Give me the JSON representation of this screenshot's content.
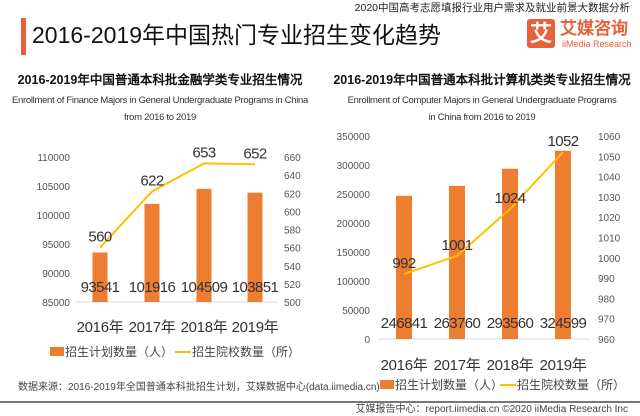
{
  "header": {
    "top_note": "2020中国高考志愿填报行业用户需求及就业前景大数据分析",
    "title": "2016-2019年中国热门专业招生变化趋势",
    "logo_mark": "艾",
    "logo_cn": "艾媒咨询",
    "logo_en": "iiMedia Research"
  },
  "colors": {
    "bar": "#ed7d31",
    "line": "#ffc000",
    "accent": "#e8603c"
  },
  "chart_data": [
    {
      "type": "bar+line",
      "title": "2016-2019年中国普通本科批金融学类专业招生情况",
      "subtitle_line1": "Enrollment of Finance Majors in General Undergraduate Programs in China",
      "subtitle_line2": "from 2016 to 2019",
      "categories": [
        "2016年",
        "2017年",
        "2018年",
        "2019年"
      ],
      "series": [
        {
          "name": "招生计划数量（人）",
          "type": "bar",
          "axis": "left",
          "values": [
            93541,
            101916,
            104509,
            103851
          ]
        },
        {
          "name": "招生院校数量（所）",
          "type": "line",
          "axis": "right",
          "values": [
            560,
            622,
            653,
            652
          ]
        }
      ],
      "ylim_left": [
        85000,
        110000
      ],
      "yticks_left": [
        "110000",
        "105000",
        "100000",
        "95000",
        "90000",
        "85000"
      ],
      "ylim_right": [
        500,
        660
      ],
      "yticks_right": [
        "660",
        "640",
        "620",
        "600",
        "580",
        "560",
        "540",
        "520",
        "500"
      ],
      "legend": "bottom"
    },
    {
      "type": "bar+line",
      "title": "2016-2019年中国普通本科批计算机类类专业招生情况",
      "subtitle_line1": "Enrollment of Computer Majors in General Undergraduate Programs",
      "subtitle_line2": "in China from 2016 to 2019",
      "categories": [
        "2016年",
        "2017年",
        "2018年",
        "2019年"
      ],
      "series": [
        {
          "name": "招生计划数量（人）",
          "type": "bar",
          "axis": "left",
          "values": [
            246841,
            263760,
            293560,
            324599
          ]
        },
        {
          "name": "招生院校数量（所）",
          "type": "line",
          "axis": "right",
          "values": [
            992,
            1001,
            1024,
            1052
          ]
        }
      ],
      "ylim_left": [
        0,
        350000
      ],
      "yticks_left": [
        "350000",
        "300000",
        "250000",
        "200000",
        "150000",
        "100000",
        "50000",
        "0"
      ],
      "ylim_right": [
        960,
        1060
      ],
      "yticks_right": [
        "1060",
        "1050",
        "1040",
        "1030",
        "1020",
        "1010",
        "1000",
        "990",
        "980",
        "970",
        "960"
      ],
      "legend": "bottom"
    }
  ],
  "footer": {
    "source": "数据来源：2016-2019年全国普通本科批招生计划，艾媒数据中心(data.iimedia.cn)",
    "credit": "艾媒报告中心：report.iimedia.cn   ©2020  iiMedia Research  Inc"
  }
}
